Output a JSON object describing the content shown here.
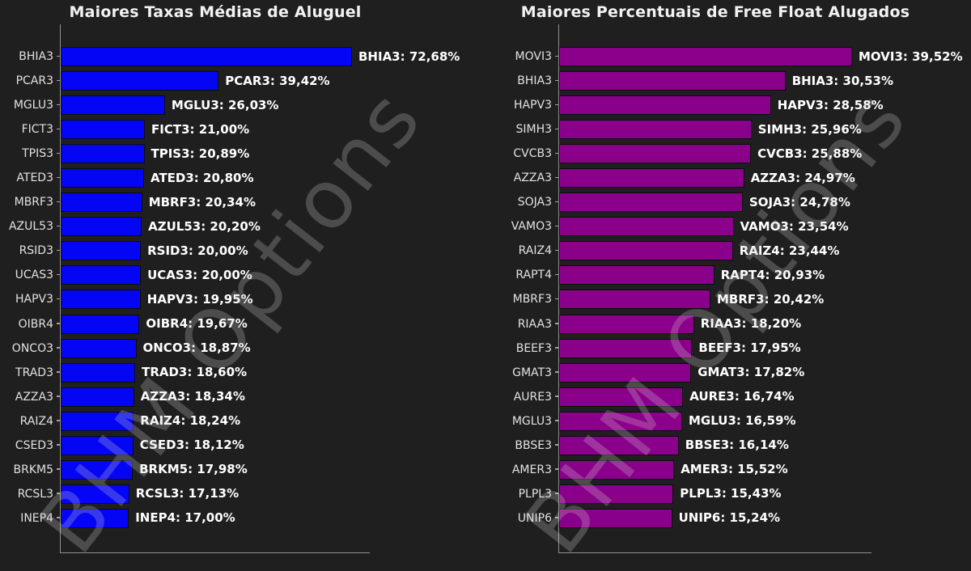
{
  "watermark": "BHM Options",
  "background_color": "#1f1f1f",
  "chart_data": [
    {
      "type": "bar",
      "orientation": "horizontal",
      "title": "Maiores Taxas Médias de Aluguel",
      "bar_color": "#0505f5",
      "background": "#1f1f1f",
      "grid": false,
      "xlim": [
        0,
        77
      ],
      "categories": [
        "BHIA3",
        "PCAR3",
        "MGLU3",
        "FICT3",
        "TPIS3",
        "ATED3",
        "MBRF3",
        "AZUL53",
        "RSID3",
        "UCAS3",
        "HAPV3",
        "OIBR4",
        "ONCO3",
        "TRAD3",
        "AZZA3",
        "RAIZ4",
        "CSED3",
        "BRKM5",
        "RCSL3",
        "INEP4"
      ],
      "values": [
        72.68,
        39.42,
        26.03,
        21.0,
        20.89,
        20.8,
        20.34,
        20.2,
        20.0,
        20.0,
        19.95,
        19.67,
        18.87,
        18.6,
        18.34,
        18.24,
        18.12,
        17.98,
        17.13,
        17.0
      ],
      "bar_labels": [
        "BHIA3: 72,68%",
        "PCAR3: 39,42%",
        "MGLU3: 26,03%",
        "FICT3: 21,00%",
        "TPIS3: 20,89%",
        "ATED3: 20,80%",
        "MBRF3: 20,34%",
        "AZUL53: 20,20%",
        "RSID3: 20,00%",
        "UCAS3: 20,00%",
        "HAPV3: 19,95%",
        "OIBR4: 19,67%",
        "ONCO3: 18,87%",
        "TRAD3: 18,60%",
        "AZZA3: 18,34%",
        "RAIZ4: 18,24%",
        "CSED3: 18,12%",
        "BRKM5: 17,98%",
        "RCSL3: 17,13%",
        "INEP4: 17,00%"
      ]
    },
    {
      "type": "bar",
      "orientation": "horizontal",
      "title": "Maiores Percentuais de Free Float Alugados",
      "bar_color": "#8b008b",
      "background": "#1f1f1f",
      "grid": false,
      "xlim": [
        0,
        42
      ],
      "categories": [
        "MOVI3",
        "BHIA3",
        "HAPV3",
        "SIMH3",
        "CVCB3",
        "AZZA3",
        "SOJA3",
        "VAMO3",
        "RAIZ4",
        "RAPT4",
        "MBRF3",
        "RIAA3",
        "BEEF3",
        "GMAT3",
        "AURE3",
        "MGLU3",
        "BBSE3",
        "AMER3",
        "PLPL3",
        "UNIP6"
      ],
      "values": [
        39.52,
        30.53,
        28.58,
        25.96,
        25.88,
        24.97,
        24.78,
        23.54,
        23.44,
        20.93,
        20.42,
        18.2,
        17.95,
        17.82,
        16.74,
        16.59,
        16.14,
        15.52,
        15.43,
        15.24
      ],
      "bar_labels": [
        "MOVI3: 39,52%",
        "BHIA3: 30,53%",
        "HAPV3: 28,58%",
        "SIMH3: 25,96%",
        "CVCB3: 25,88%",
        "AZZA3: 24,97%",
        "SOJA3: 24,78%",
        "VAMO3: 23,54%",
        "RAIZ4: 23,44%",
        "RAPT4: 20,93%",
        "MBRF3: 20,42%",
        "RIAA3: 18,20%",
        "BEEF3: 17,95%",
        "GMAT3: 17,82%",
        "AURE3: 16,74%",
        "MGLU3: 16,59%",
        "BBSE3: 16,14%",
        "AMER3: 15,52%",
        "PLPL3: 15,43%",
        "UNIP6: 15,24%"
      ]
    }
  ]
}
